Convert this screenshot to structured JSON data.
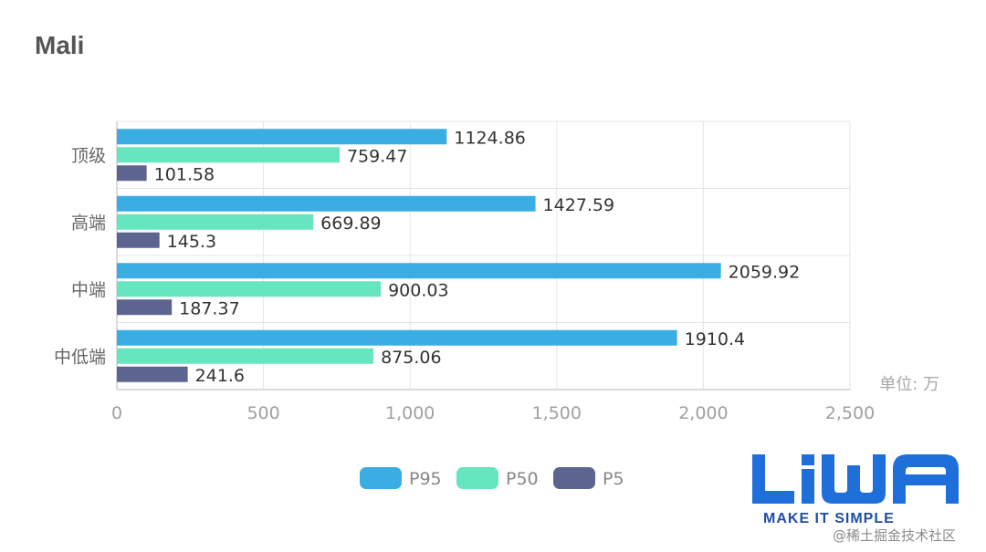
{
  "chart_data": {
    "type": "bar",
    "orientation": "horizontal",
    "title": "Mali",
    "categories": [
      "顶级",
      "高端",
      "中端",
      "中低端"
    ],
    "series": [
      {
        "name": "P95",
        "color": "#3aade3",
        "values": [
          1124.86,
          1427.59,
          2059.92,
          1910.4
        ]
      },
      {
        "name": "P50",
        "color": "#66e6bf",
        "values": [
          759.47,
          669.89,
          900.03,
          875.06
        ]
      },
      {
        "name": "P5",
        "color": "#5b6590",
        "values": [
          101.58,
          145.3,
          187.37,
          241.6
        ]
      }
    ],
    "value_labels": [
      [
        "1124.86",
        "1427.59",
        "2059.92",
        "1910.4"
      ],
      [
        "759.47",
        "669.89",
        "900.03",
        "875.06"
      ],
      [
        "101.58",
        "145.3",
        "187.37",
        "241.6"
      ]
    ],
    "xlim": [
      0,
      2500
    ],
    "x_ticks": [
      "0",
      "500",
      "1,000",
      "1,500",
      "2,000",
      "2,500"
    ],
    "unit_label": "单位: 万",
    "grid": true,
    "legend_position": "bottom"
  },
  "logo": {
    "text": "LiWA",
    "tagline": "MAKE IT SIMPLE",
    "color": "#1e6fd9"
  },
  "watermark": "@稀土掘金技术社区"
}
